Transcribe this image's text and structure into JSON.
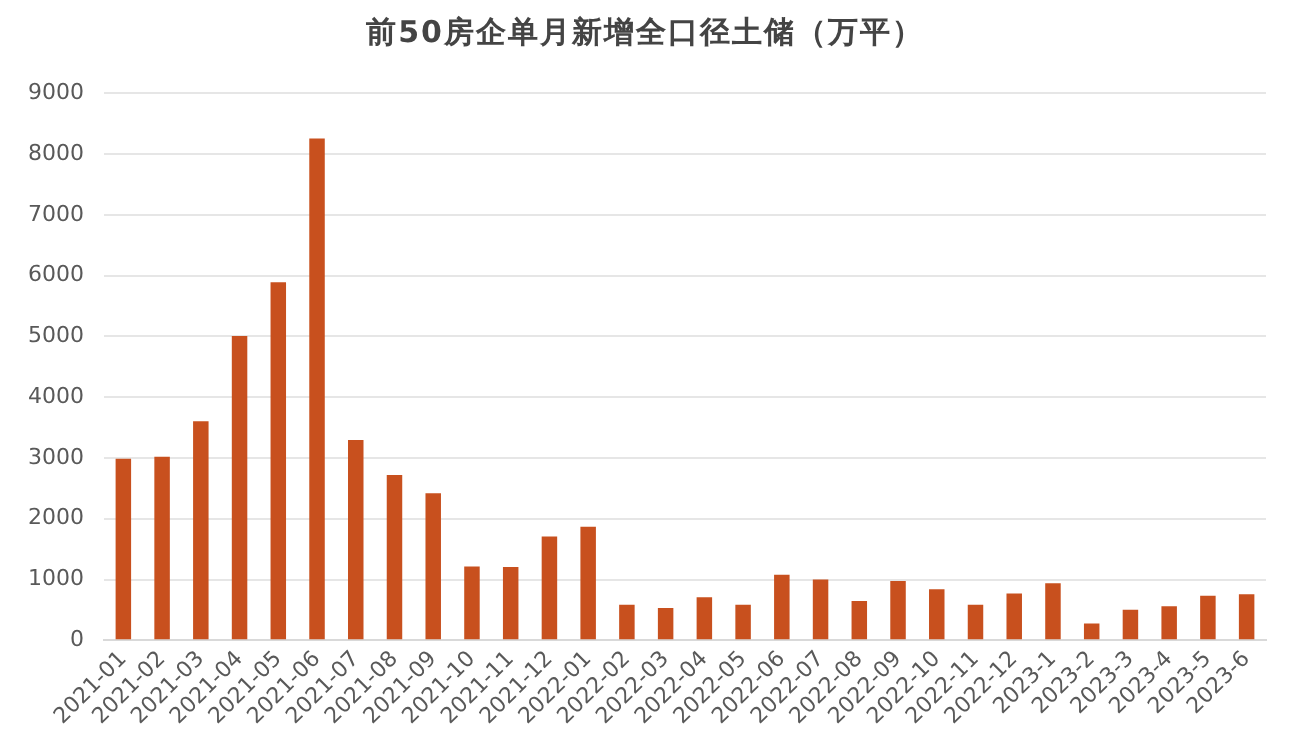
{
  "chart_data": {
    "type": "bar",
    "title": "前50房企单月新增全口径土储（万平）",
    "categories": [
      "2021-01",
      "2021-02",
      "2021-03",
      "2021-04",
      "2021-05",
      "2021-06",
      "2021-07",
      "2021-08",
      "2021-09",
      "2021-10",
      "2021-11",
      "2021-12",
      "2022-01",
      "2022-02",
      "2022-03",
      "2022-04",
      "2022-05",
      "2022-06",
      "2022-07",
      "2022-08",
      "2022-09",
      "2022-10",
      "2022-11",
      "2022-12",
      "2023-1",
      "2023-2",
      "2023-3",
      "2023-4",
      "2023-5",
      "2023-6"
    ],
    "values": [
      2985,
      3020,
      3605,
      5005,
      5890,
      8255,
      3295,
      2720,
      2420,
      1215,
      1205,
      1710,
      1870,
      585,
      530,
      710,
      585,
      1080,
      1000,
      645,
      975,
      840,
      585,
      770,
      940,
      275,
      505,
      560,
      735,
      760
    ],
    "color": "#c8501e",
    "ylim": [
      0,
      9000
    ],
    "yticks": [
      0,
      1000,
      2000,
      3000,
      4000,
      5000,
      6000,
      7000,
      8000,
      9000
    ],
    "grid": "y"
  }
}
